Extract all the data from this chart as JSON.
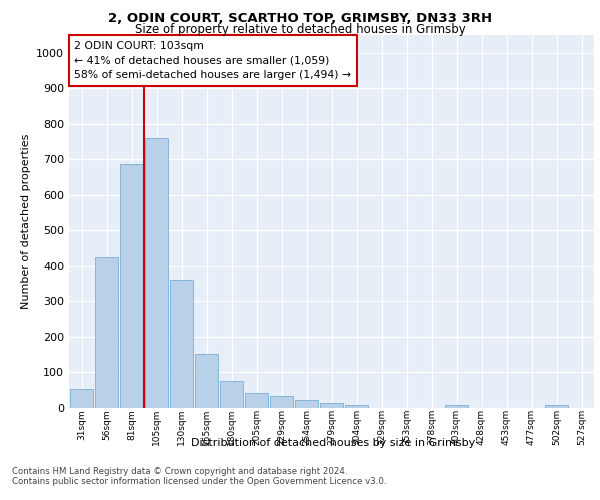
{
  "title1": "2, ODIN COURT, SCARTHO TOP, GRIMSBY, DN33 3RH",
  "title2": "Size of property relative to detached houses in Grimsby",
  "xlabel": "Distribution of detached houses by size in Grimsby",
  "ylabel": "Number of detached properties",
  "categories": [
    "31sqm",
    "56sqm",
    "81sqm",
    "105sqm",
    "130sqm",
    "155sqm",
    "180sqm",
    "205sqm",
    "229sqm",
    "254sqm",
    "279sqm",
    "304sqm",
    "329sqm",
    "353sqm",
    "378sqm",
    "403sqm",
    "428sqm",
    "453sqm",
    "477sqm",
    "502sqm",
    "527sqm"
  ],
  "values": [
    52,
    425,
    685,
    760,
    360,
    152,
    75,
    42,
    32,
    22,
    12,
    8,
    0,
    0,
    0,
    8,
    0,
    0,
    0,
    8,
    0
  ],
  "bar_color": "#b8d0e8",
  "bar_edge_color": "#7aafd4",
  "vline_color": "#cc0000",
  "vline_x_index": 3,
  "annotation_text": "2 ODIN COURT: 103sqm\n← 41% of detached houses are smaller (1,059)\n58% of semi-detached houses are larger (1,494) →",
  "annotation_box_color": "#ffffff",
  "annotation_box_edge": "#cc0000",
  "ylim": [
    0,
    1050
  ],
  "yticks": [
    0,
    100,
    200,
    300,
    400,
    500,
    600,
    700,
    800,
    900,
    1000
  ],
  "background_color": "#e8eef8",
  "footer1": "Contains HM Land Registry data © Crown copyright and database right 2024.",
  "footer2": "Contains public sector information licensed under the Open Government Licence v3.0."
}
